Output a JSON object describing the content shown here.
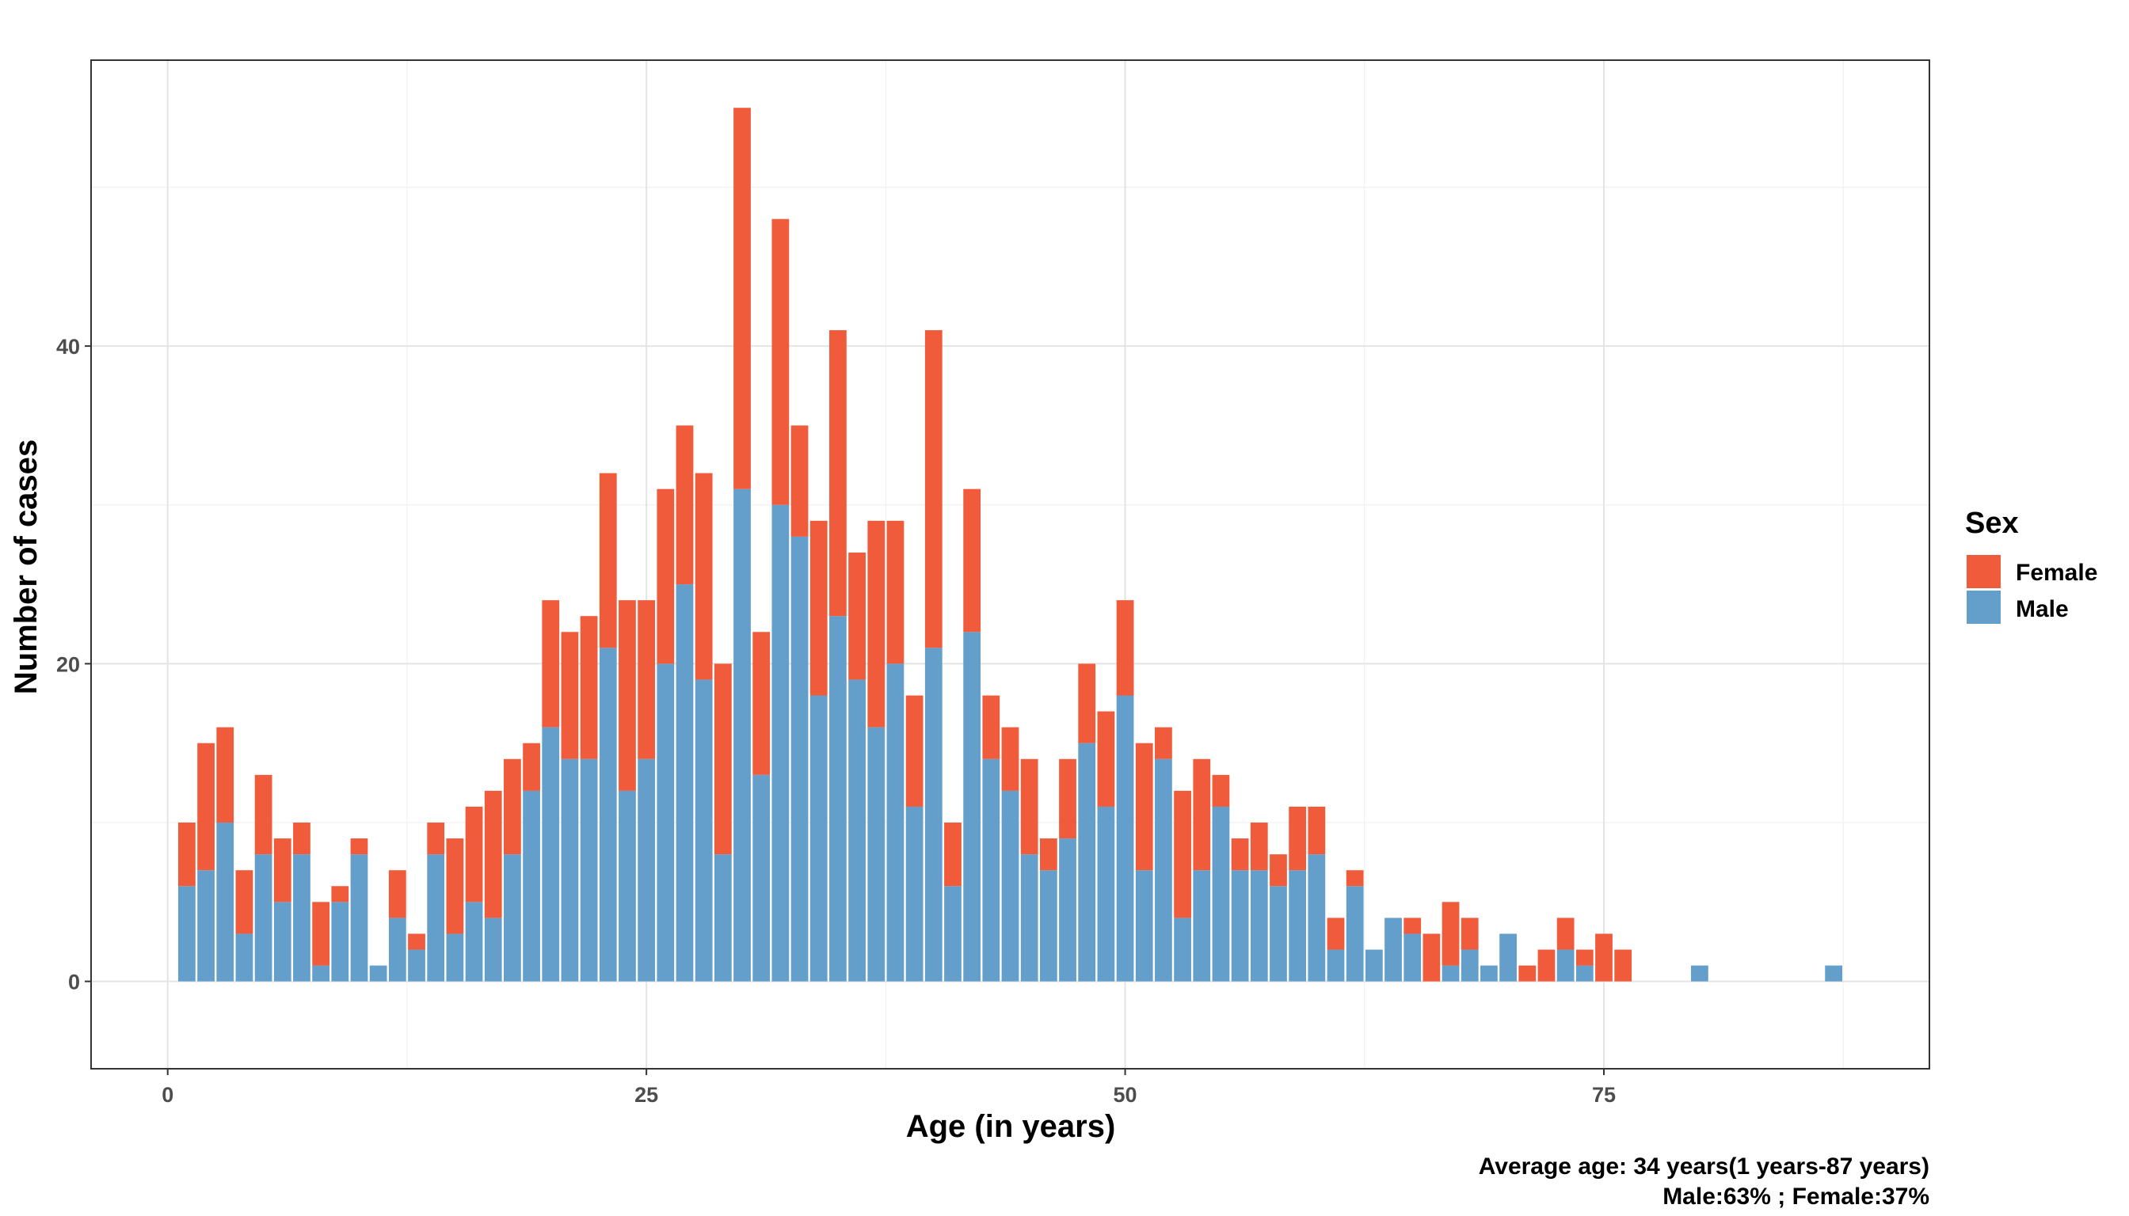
{
  "chart_data": {
    "type": "bar",
    "stacked": true,
    "x": [
      1,
      2,
      3,
      4,
      5,
      6,
      7,
      8,
      9,
      10,
      11,
      12,
      13,
      14,
      15,
      16,
      17,
      18,
      19,
      20,
      21,
      22,
      23,
      24,
      25,
      26,
      27,
      28,
      29,
      30,
      31,
      32,
      33,
      34,
      35,
      36,
      37,
      38,
      39,
      40,
      41,
      42,
      43,
      44,
      45,
      46,
      47,
      48,
      49,
      50,
      51,
      52,
      53,
      54,
      55,
      56,
      57,
      58,
      59,
      60,
      61,
      62,
      63,
      64,
      65,
      66,
      67,
      68,
      69,
      70,
      71,
      72,
      73,
      74,
      75,
      76,
      80,
      87
    ],
    "series": [
      {
        "name": "Male",
        "values": [
          6,
          7,
          10,
          3,
          8,
          5,
          8,
          1,
          5,
          8,
          1,
          4,
          2,
          8,
          3,
          5,
          4,
          8,
          12,
          16,
          14,
          14,
          21,
          12,
          14,
          20,
          25,
          19,
          8,
          31,
          13,
          30,
          28,
          18,
          23,
          19,
          16,
          20,
          11,
          21,
          6,
          22,
          14,
          12,
          8,
          7,
          9,
          15,
          11,
          18,
          7,
          14,
          4,
          7,
          11,
          7,
          7,
          6,
          7,
          8,
          2,
          6,
          2,
          4,
          3,
          0,
          1,
          2,
          1,
          3,
          0,
          0,
          2,
          1,
          0,
          0,
          1,
          1
        ]
      },
      {
        "name": "Female",
        "values": [
          4,
          8,
          6,
          4,
          5,
          4,
          2,
          4,
          1,
          1,
          0,
          3,
          1,
          2,
          6,
          6,
          8,
          6,
          3,
          8,
          8,
          9,
          11,
          12,
          10,
          11,
          10,
          13,
          12,
          24,
          9,
          18,
          7,
          11,
          18,
          8,
          13,
          9,
          7,
          20,
          4,
          9,
          4,
          4,
          6,
          2,
          5,
          5,
          6,
          6,
          8,
          2,
          8,
          7,
          2,
          2,
          3,
          2,
          4,
          3,
          2,
          1,
          0,
          0,
          1,
          3,
          4,
          2,
          0,
          0,
          1,
          2,
          2,
          1,
          3,
          2,
          0,
          0
        ]
      }
    ],
    "colors": {
      "Female": "#ef5b3b",
      "Male": "#649fcb"
    },
    "title": "",
    "xlabel": "Age (in years)",
    "ylabel": "Number of cases",
    "xlim": [
      -4,
      92
    ],
    "ylim": [
      -5.5,
      58
    ],
    "xticks": [
      0,
      25,
      50,
      75
    ],
    "yticks": [
      0,
      20,
      40
    ],
    "grid": true,
    "legend": {
      "title": "Sex",
      "entries": [
        "Female",
        "Male"
      ],
      "placement": "right"
    },
    "caption": [
      "Average age: 34 years(1 years-87 years)",
      "Male:63% ; Female:37%"
    ]
  }
}
